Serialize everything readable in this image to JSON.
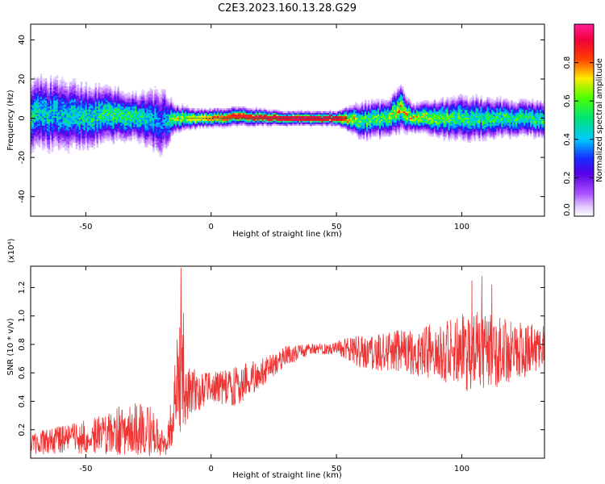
{
  "title": "C2E3.2023.160.13.28.G29",
  "chart_data": [
    {
      "type": "heatmap",
      "title": "C2E3.2023.160.13.28.G29",
      "xlabel": "Height of straight line (km)",
      "ylabel": "Frequency (Hz)",
      "xlim": [
        -72,
        133
      ],
      "ylim": [
        -50,
        48
      ],
      "xticks": [
        -50,
        0,
        50,
        100
      ],
      "yticks": [
        -40,
        -20,
        0,
        20,
        40
      ],
      "colorbar": {
        "label": "Normalized spectral amplitude",
        "range": [
          0.0,
          1.0
        ],
        "ticks": [
          0.0,
          0.2,
          0.4,
          0.6,
          0.8
        ],
        "tick_labels": [
          "0.0",
          "0.2",
          "0.4",
          "0.6",
          "0.8"
        ],
        "colormap": "rainbow (white → purple → blue → cyan → green → yellow → red → magenta)"
      },
      "ridge": [
        {
          "x": -72,
          "f": 2,
          "spread": 8,
          "amp": 0.5
        },
        {
          "x": -60,
          "f": 2,
          "spread": 8,
          "amp": 0.45
        },
        {
          "x": -50,
          "f": 1,
          "spread": 7,
          "amp": 0.5
        },
        {
          "x": -40,
          "f": 1.5,
          "spread": 6,
          "amp": 0.55
        },
        {
          "x": -30,
          "f": 1,
          "spread": 5,
          "amp": 0.55
        },
        {
          "x": -20,
          "f": -2,
          "spread": 8,
          "amp": 0.35
        },
        {
          "x": -15,
          "f": 0,
          "spread": 3,
          "amp": 0.65
        },
        {
          "x": -5,
          "f": 0,
          "spread": 2,
          "amp": 0.7
        },
        {
          "x": 10,
          "f": 1,
          "spread": 2,
          "amp": 0.85
        },
        {
          "x": 30,
          "f": 0,
          "spread": 1.5,
          "amp": 0.9
        },
        {
          "x": 50,
          "f": 0,
          "spread": 1.5,
          "amp": 0.9
        },
        {
          "x": 60,
          "f": -1,
          "spread": 4,
          "amp": 0.6
        },
        {
          "x": 70,
          "f": 0,
          "spread": 4,
          "amp": 0.6
        },
        {
          "x": 75,
          "f": 5,
          "spread": 5,
          "amp": 0.75
        },
        {
          "x": 80,
          "f": 0,
          "spread": 3,
          "amp": 0.7
        },
        {
          "x": 100,
          "f": 0,
          "spread": 5,
          "amp": 0.55
        },
        {
          "x": 120,
          "f": 0,
          "spread": 4,
          "amp": 0.55
        },
        {
          "x": 133,
          "f": 0,
          "spread": 4,
          "amp": 0.55
        }
      ]
    },
    {
      "type": "line",
      "xlabel": "Height of straight line (km)",
      "ylabel": "SNR (10 * v/v)",
      "y_multiplier_label": "(x10⁴)",
      "xlim": [
        -72,
        133
      ],
      "ylim": [
        0,
        1.35
      ],
      "xticks": [
        -50,
        0,
        50,
        100
      ],
      "yticks": [
        0.2,
        0.4,
        0.6,
        0.8,
        1.0,
        1.2
      ],
      "ytick_labels": [
        "0.2",
        "0.4",
        "0.6",
        "0.8",
        "1.0",
        "1.2"
      ],
      "series": [
        {
          "color": "#ee3333",
          "envelope": [
            {
              "x": -72,
              "mean": 0.1,
              "amp": 0.08
            },
            {
              "x": -50,
              "mean": 0.15,
              "amp": 0.12
            },
            {
              "x": -35,
              "mean": 0.2,
              "amp": 0.18
            },
            {
              "x": -25,
              "mean": 0.2,
              "amp": 0.2
            },
            {
              "x": -18,
              "mean": 0.08,
              "amp": 0.07
            },
            {
              "x": -15,
              "mean": 0.35,
              "amp": 0.25
            },
            {
              "x": -12,
              "mean": 0.6,
              "amp": 0.5
            },
            {
              "x": -10,
              "mean": 0.45,
              "amp": 0.2
            },
            {
              "x": 0,
              "mean": 0.5,
              "amp": 0.1
            },
            {
              "x": 10,
              "mean": 0.5,
              "amp": 0.15
            },
            {
              "x": 20,
              "mean": 0.6,
              "amp": 0.1
            },
            {
              "x": 30,
              "mean": 0.72,
              "amp": 0.07
            },
            {
              "x": 40,
              "mean": 0.77,
              "amp": 0.04
            },
            {
              "x": 50,
              "mean": 0.78,
              "amp": 0.05
            },
            {
              "x": 60,
              "mean": 0.75,
              "amp": 0.12
            },
            {
              "x": 75,
              "mean": 0.75,
              "amp": 0.15
            },
            {
              "x": 90,
              "mean": 0.75,
              "amp": 0.2
            },
            {
              "x": 105,
              "mean": 0.75,
              "amp": 0.3
            },
            {
              "x": 120,
              "mean": 0.75,
              "amp": 0.22
            },
            {
              "x": 133,
              "mean": 0.78,
              "amp": 0.15
            }
          ],
          "spikes": [
            {
              "x": -12,
              "y": 1.34
            },
            {
              "x": -11,
              "y": 1.02
            },
            {
              "x": 104,
              "y": 1.25
            },
            {
              "x": 108,
              "y": 1.28
            },
            {
              "x": 112,
              "y": 1.22
            }
          ]
        }
      ]
    }
  ]
}
